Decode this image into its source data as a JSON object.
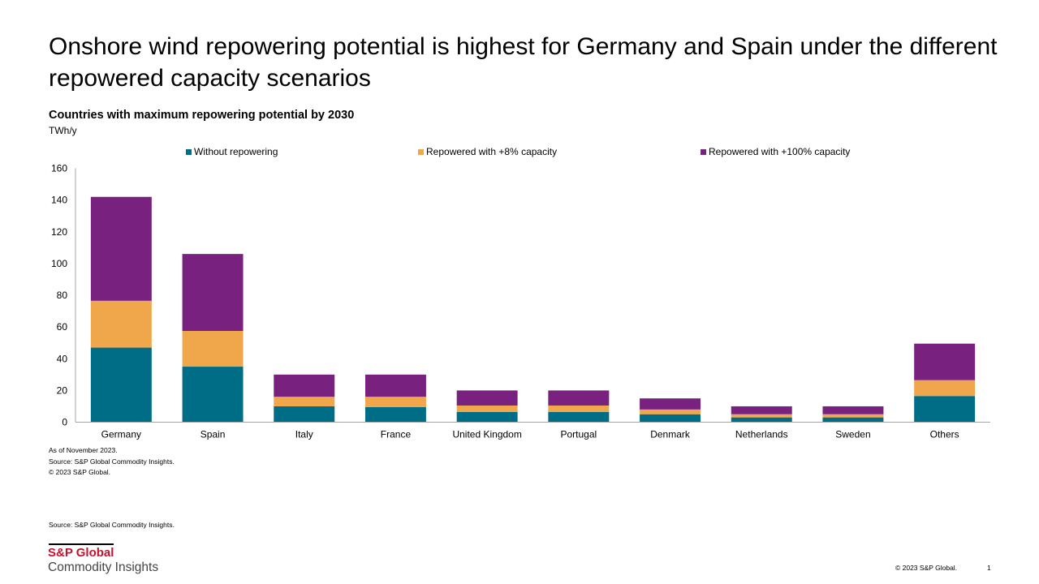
{
  "slide": {
    "title": "Onshore wind repowering potential is highest for Germany and Spain under the different repowered capacity scenarios",
    "notes": [
      "As of November 2023.",
      "Source: S&P Global Commodity Insights.",
      "© 2023 S&P Global."
    ],
    "source": "Source: S&P Global Commodity Insights.",
    "logo": {
      "main": "S&P Global",
      "sub": "Commodity Insights"
    },
    "footer": {
      "copyright": "© 2023  S&P Global.",
      "page": "1"
    }
  },
  "chart_data": {
    "type": "bar",
    "stacked": true,
    "title": "Countries with maximum repowering potential by 2030",
    "ylabel": "TWh/y",
    "xlabel": "",
    "ylim": [
      0,
      160
    ],
    "yticks": [
      0,
      20,
      40,
      60,
      80,
      100,
      120,
      140,
      160
    ],
    "grid": false,
    "legend_position": "top",
    "categories": [
      "Germany",
      "Spain",
      "Italy",
      "France",
      "United Kingdom",
      "Portugal",
      "Denmark",
      "Netherlands",
      "Sweden",
      "Others"
    ],
    "series": [
      {
        "name": "Without repowering",
        "color": "#006d87",
        "values": [
          47,
          35,
          10,
          9.5,
          6.5,
          6.5,
          5,
          3,
          3,
          16.5
        ]
      },
      {
        "name": "Repowered with +8% capacity",
        "color": "#f0a64a",
        "values": [
          29.5,
          22.5,
          6,
          6.5,
          4,
          4,
          3,
          2,
          2,
          10
        ]
      },
      {
        "name": "Repowered with +100% capacity",
        "color": "#78217e",
        "values": [
          65.5,
          48.5,
          14,
          14,
          9.5,
          9.5,
          7,
          5,
          5,
          23
        ]
      }
    ]
  }
}
